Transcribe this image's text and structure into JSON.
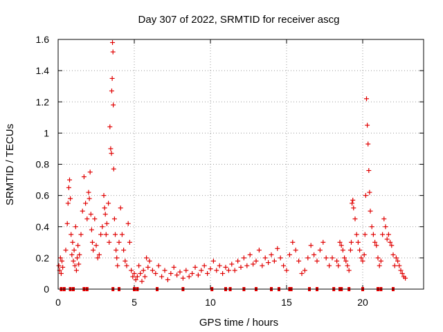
{
  "chart_data": {
    "type": "scatter",
    "title": "Day 307 of 2022, SRMTID for receiver ascg",
    "xlabel": "GPS time / hours",
    "ylabel": "SRMTID / TECUs",
    "xlim": [
      0,
      24
    ],
    "ylim": [
      0,
      1.6
    ],
    "xticks": [
      0,
      5,
      10,
      15,
      20
    ],
    "xtick_labels": [
      "0",
      "5",
      "10",
      "15",
      "20"
    ],
    "yticks": [
      0,
      0.2,
      0.4,
      0.6,
      0.8,
      1,
      1.2,
      1.4,
      1.6
    ],
    "ytick_labels": [
      "0",
      "0.2",
      "0.4",
      "0.6",
      "0.8",
      "1",
      "1.2",
      "1.4",
      "1.6"
    ],
    "grid": true,
    "marker": "+",
    "color": "#e00000",
    "series": [
      {
        "name": "SRMTID",
        "x": [
          0.05,
          0.1,
          0.15,
          0.2,
          0.25,
          0.3,
          0.5,
          0.6,
          0.65,
          0.7,
          0.75,
          0.8,
          0.85,
          0.9,
          0.95,
          1.0,
          1.05,
          1.1,
          1.15,
          1.2,
          1.25,
          1.3,
          1.35,
          1.4,
          1.5,
          1.6,
          1.7,
          1.8,
          1.9,
          2.0,
          2.05,
          2.1,
          2.15,
          2.2,
          2.25,
          2.3,
          2.4,
          2.5,
          2.6,
          2.7,
          2.8,
          2.9,
          3.0,
          3.05,
          3.1,
          3.15,
          3.2,
          3.3,
          3.35,
          3.4,
          3.45,
          3.5,
          3.52,
          3.55,
          3.57,
          3.6,
          3.62,
          3.65,
          3.7,
          3.75,
          3.8,
          3.85,
          3.9,
          4.0,
          4.1,
          4.2,
          4.3,
          4.4,
          4.5,
          4.6,
          4.7,
          4.8,
          4.9,
          5.0,
          5.1,
          5.2,
          5.3,
          5.4,
          5.5,
          5.6,
          5.7,
          5.8,
          5.9,
          6.0,
          6.2,
          6.4,
          6.6,
          6.8,
          7.0,
          7.2,
          7.4,
          7.6,
          7.8,
          8.0,
          8.2,
          8.4,
          8.6,
          8.8,
          9.0,
          9.2,
          9.4,
          9.6,
          9.8,
          10.0,
          10.2,
          10.4,
          10.6,
          10.8,
          11.0,
          11.2,
          11.4,
          11.6,
          11.8,
          12.0,
          12.2,
          12.4,
          12.6,
          12.8,
          13.0,
          13.2,
          13.4,
          13.6,
          13.8,
          14.0,
          14.2,
          14.4,
          14.6,
          14.8,
          15.0,
          15.2,
          15.4,
          15.6,
          15.8,
          16.0,
          16.2,
          16.4,
          16.6,
          16.8,
          17.0,
          17.2,
          17.4,
          17.6,
          17.8,
          18.0,
          18.3,
          18.4,
          18.5,
          18.6,
          18.7,
          18.8,
          18.9,
          19.0,
          19.1,
          19.2,
          19.25,
          19.3,
          19.35,
          19.4,
          19.5,
          19.6,
          19.7,
          19.8,
          19.9,
          20.0,
          20.1,
          20.15,
          20.2,
          20.25,
          20.3,
          20.35,
          20.4,
          20.45,
          20.5,
          20.6,
          20.7,
          20.8,
          20.9,
          21.0,
          21.1,
          21.2,
          21.3,
          21.4,
          21.5,
          21.6,
          21.7,
          21.8,
          21.9,
          22.0,
          22.1,
          22.2,
          22.3,
          22.4,
          22.5,
          22.6,
          22.7,
          22.8
        ],
        "y": [
          0.15,
          0.12,
          0.2,
          0.1,
          0.18,
          0.14,
          0.25,
          0.42,
          0.55,
          0.65,
          0.7,
          0.58,
          0.35,
          0.22,
          0.3,
          0.18,
          0.25,
          0.15,
          0.4,
          0.12,
          0.2,
          0.28,
          0.16,
          0.22,
          0.35,
          0.5,
          0.72,
          0.55,
          0.45,
          0.62,
          0.58,
          0.75,
          0.48,
          0.38,
          0.3,
          0.25,
          0.45,
          0.28,
          0.2,
          0.22,
          0.35,
          0.4,
          0.6,
          0.52,
          0.48,
          0.35,
          0.42,
          0.55,
          0.3,
          1.04,
          0.9,
          0.87,
          1.27,
          1.35,
          1.58,
          1.52,
          1.18,
          0.77,
          0.45,
          0.35,
          0.25,
          0.2,
          0.15,
          0.3,
          0.52,
          0.35,
          0.25,
          0.18,
          0.15,
          0.42,
          0.3,
          0.12,
          0.08,
          0.1,
          0.06,
          0.08,
          0.15,
          0.1,
          0.05,
          0.12,
          0.08,
          0.2,
          0.14,
          0.18,
          0.12,
          0.1,
          0.15,
          0.08,
          0.12,
          0.06,
          0.1,
          0.14,
          0.09,
          0.11,
          0.07,
          0.12,
          0.08,
          0.1,
          0.14,
          0.09,
          0.12,
          0.15,
          0.1,
          0.13,
          0.18,
          0.12,
          0.15,
          0.1,
          0.14,
          0.12,
          0.16,
          0.12,
          0.18,
          0.14,
          0.2,
          0.15,
          0.22,
          0.16,
          0.18,
          0.25,
          0.15,
          0.2,
          0.17,
          0.22,
          0.18,
          0.26,
          0.2,
          0.15,
          0.12,
          0.22,
          0.3,
          0.25,
          0.18,
          0.1,
          0.12,
          0.2,
          0.28,
          0.22,
          0.18,
          0.25,
          0.3,
          0.2,
          0.15,
          0.2,
          0.18,
          0.15,
          0.3,
          0.28,
          0.25,
          0.2,
          0.18,
          0.15,
          0.12,
          0.25,
          0.3,
          0.55,
          0.57,
          0.52,
          0.45,
          0.35,
          0.3,
          0.25,
          0.2,
          0.18,
          0.22,
          0.35,
          0.6,
          1.22,
          1.05,
          0.93,
          0.76,
          0.62,
          0.5,
          0.4,
          0.35,
          0.3,
          0.28,
          0.2,
          0.15,
          0.18,
          0.35,
          0.45,
          0.4,
          0.32,
          0.35,
          0.3,
          0.28,
          0.22,
          0.15,
          0.2,
          0.18,
          0.15,
          0.12,
          0.1,
          0.08,
          0.07
        ],
        "zero_markers_x": [
          0.2,
          0.4,
          0.8,
          1.0,
          1.7,
          1.9,
          3.6,
          4.0,
          5.0,
          5.2,
          6.5,
          8.2,
          10.1,
          11.0,
          11.3,
          12.2,
          13.0,
          14.0,
          14.5,
          15.2,
          15.3,
          16.5,
          17.0,
          18.1,
          18.5,
          18.6,
          19.1,
          20.0,
          21.0,
          21.2,
          22.0
        ]
      }
    ]
  }
}
